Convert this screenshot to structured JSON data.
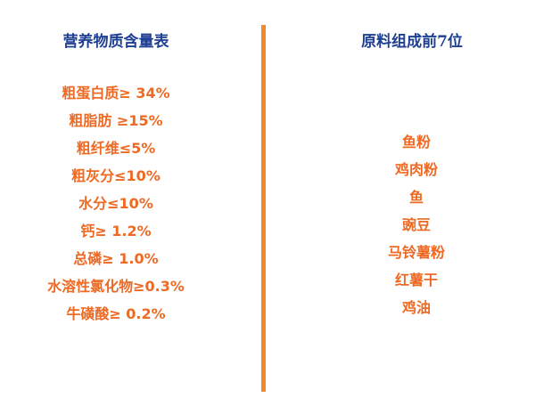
{
  "left": {
    "title": "营养物质含量表",
    "items": [
      "粗蛋白质≥ 34%",
      "粗脂肪 ≥15%",
      "粗纤维≤5%",
      "粗灰分≤10%",
      "水分≤10%",
      "钙≥ 1.2%",
      "总磷≥ 1.0%",
      "水溶性氯化物≥0.3%",
      "牛磺酸≥ 0.2%"
    ]
  },
  "right": {
    "title": "原料组成前7位",
    "items": [
      "鱼粉",
      "鸡肉粉",
      "鱼",
      "豌豆",
      "马铃薯粉",
      "红薯干",
      "鸡油"
    ]
  },
  "colors": {
    "title": "#1f3f93",
    "text": "#ee6a24",
    "divider": "#f08a2a"
  }
}
